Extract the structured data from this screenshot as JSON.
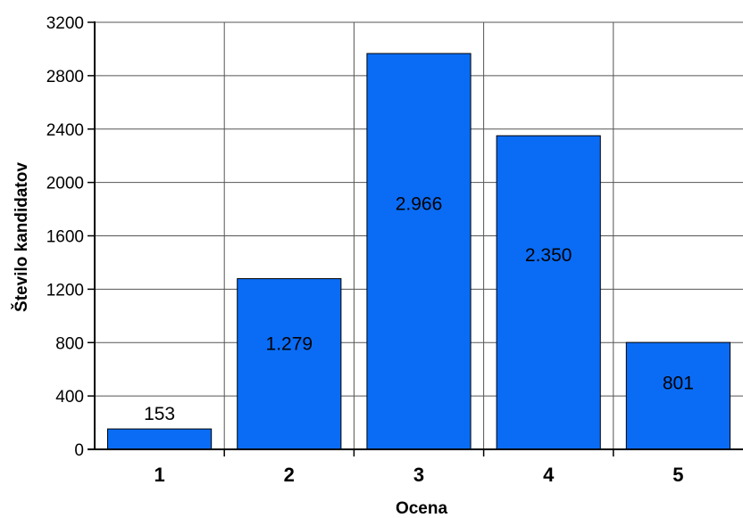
{
  "chart_data": {
    "type": "bar",
    "categories": [
      "1",
      "2",
      "3",
      "4",
      "5"
    ],
    "values": [
      153,
      1279,
      2966,
      2350,
      801
    ],
    "data_labels": [
      "153",
      "1.279",
      "2.966",
      "2.350",
      "801"
    ],
    "xlabel": "Ocena",
    "ylabel": "Število kandidatov",
    "ylim": [
      0,
      3200
    ],
    "yticks": [
      0,
      400,
      800,
      1200,
      1600,
      2000,
      2400,
      2800,
      3200
    ],
    "ytick_labels": [
      "0",
      "400",
      "800",
      "1200",
      "1600",
      "2000",
      "2400",
      "2800",
      "3200"
    ],
    "grid": true,
    "legend": "none",
    "bar_color": "#0a6cf5",
    "bar_edge_color": "#000000",
    "grid_color": "#555555"
  }
}
